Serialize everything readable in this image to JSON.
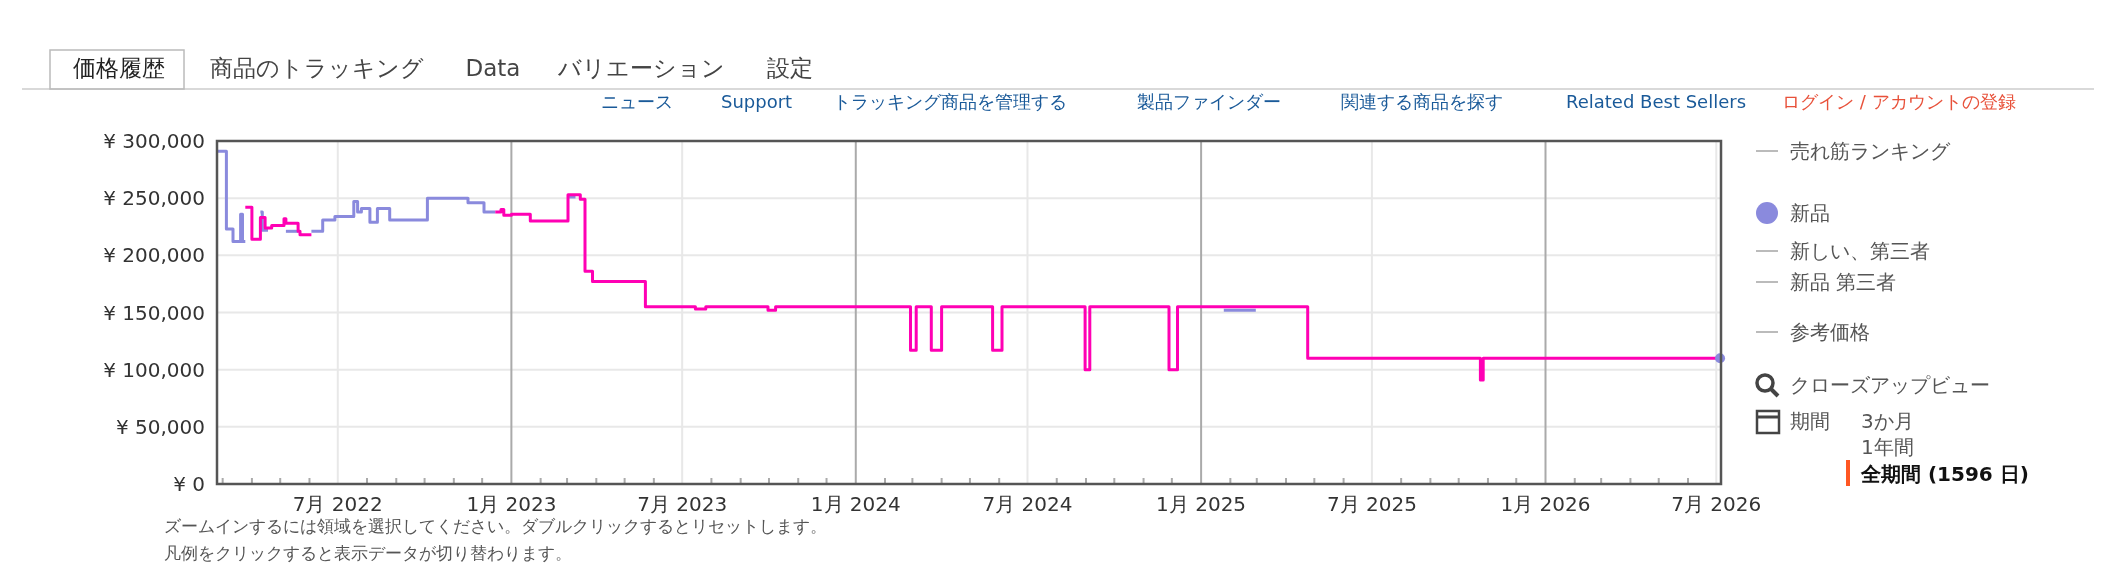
{
  "chart_data": {
    "type": "step",
    "ylim": [
      0,
      300000
    ],
    "xlim": [
      "2022-02-23",
      "2026-07-06"
    ],
    "yticks": [
      {
        "value": 0,
        "label": "¥ 0"
      },
      {
        "value": 50000,
        "label": "¥ 50,000"
      },
      {
        "value": 100000,
        "label": "¥ 100,000"
      },
      {
        "value": 150000,
        "label": "¥ 150,000"
      },
      {
        "value": 200000,
        "label": "¥ 200,000"
      },
      {
        "value": 250000,
        "label": "¥ 250,000"
      },
      {
        "value": 300000,
        "label": "¥ 300,000"
      }
    ],
    "xticks": [
      {
        "value": "2022-03",
        "label": null
      },
      {
        "value": "2022-04",
        "label": null
      },
      {
        "value": "2022-05",
        "label": null
      },
      {
        "value": "2022-06",
        "label": null
      },
      {
        "value": "2022-07",
        "label": "7月 2022"
      },
      {
        "value": "2022-08",
        "label": null
      },
      {
        "value": "2022-09",
        "label": null
      },
      {
        "value": "2022-10",
        "label": null
      },
      {
        "value": "2022-11",
        "label": null
      },
      {
        "value": "2022-12",
        "label": null
      },
      {
        "value": "2023-01",
        "label": "1月 2023"
      },
      {
        "value": "2023-02",
        "label": null
      },
      {
        "value": "2023-03",
        "label": null
      },
      {
        "value": "2023-04",
        "label": null
      },
      {
        "value": "2023-05",
        "label": null
      },
      {
        "value": "2023-06",
        "label": null
      },
      {
        "value": "2023-07",
        "label": "7月 2023"
      },
      {
        "value": "2023-08",
        "label": null
      },
      {
        "value": "2023-09",
        "label": null
      },
      {
        "value": "2023-10",
        "label": null
      },
      {
        "value": "2023-11",
        "label": null
      },
      {
        "value": "2023-12",
        "label": null
      },
      {
        "value": "2024-01",
        "label": "1月 2024"
      },
      {
        "value": "2024-02",
        "label": null
      },
      {
        "value": "2024-03",
        "label": null
      },
      {
        "value": "2024-04",
        "label": null
      },
      {
        "value": "2024-05",
        "label": null
      },
      {
        "value": "2024-06",
        "label": null
      },
      {
        "value": "2024-07",
        "label": "7月 2024"
      },
      {
        "value": "2024-08",
        "label": null
      },
      {
        "value": "2024-09",
        "label": null
      },
      {
        "value": "2024-10",
        "label": null
      },
      {
        "value": "2024-11",
        "label": null
      },
      {
        "value": "2024-12",
        "label": null
      },
      {
        "value": "2025-01",
        "label": "1月 2025"
      },
      {
        "value": "2025-02",
        "label": null
      },
      {
        "value": "2025-03",
        "label": null
      },
      {
        "value": "2025-04",
        "label": null
      },
      {
        "value": "2025-05",
        "label": null
      },
      {
        "value": "2025-06",
        "label": null
      },
      {
        "value": "2025-07",
        "label": "7月 2025"
      },
      {
        "value": "2025-08",
        "label": null
      },
      {
        "value": "2025-09",
        "label": null
      },
      {
        "value": "2025-10",
        "label": null
      },
      {
        "value": "2025-11",
        "label": null
      },
      {
        "value": "2025-12",
        "label": null
      },
      {
        "value": "2026-01",
        "label": "1月 2026"
      },
      {
        "value": "2026-02",
        "label": null
      },
      {
        "value": "2026-03",
        "label": null
      },
      {
        "value": "2026-04",
        "label": null
      },
      {
        "value": "2026-05",
        "label": null
      },
      {
        "value": "2026-06",
        "label": null
      },
      {
        "value": "2026-07",
        "label": "7月 2026"
      }
    ],
    "grid": true,
    "legend": "right",
    "series": [
      {
        "name": "新品",
        "color": "#8a8add",
        "x": [
          "2022-02-23",
          "2022-03-05",
          "2022-03-12",
          "2022-03-20",
          "2022-03-22",
          "2022-03-25"
        ],
        "values": [
          291000,
          223000,
          212000,
          236000,
          212000,
          212000
        ]
      },
      {
        "color": "#8a8add",
        "x": [
          "2022-04-10",
          "2022-04-12",
          "2022-04-18"
        ],
        "values": [
          238000,
          222000,
          222000
        ]
      },
      {
        "color": "#8a8add",
        "x": [
          "2022-05-07",
          "2022-05-20"
        ],
        "values": [
          221000,
          221000
        ]
      },
      {
        "color": "#8a8add",
        "x": [
          "2022-06-03",
          "2022-06-15",
          "2022-06-28",
          "2022-07-18",
          "2022-07-22",
          "2022-07-26",
          "2022-08-04",
          "2022-08-12",
          "2022-08-25",
          "2022-10-04",
          "2022-11-16",
          "2022-12-03",
          "2022-12-15"
        ],
        "values": [
          221000,
          231000,
          234000,
          247000,
          238000,
          241000,
          229000,
          241000,
          231000,
          250000,
          246000,
          238000,
          238000
        ]
      },
      {
        "color": "#8a8add",
        "x": [
          "2023-03-02",
          "2023-03-10"
        ],
        "values": [
          251000,
          251000
        ]
      },
      {
        "color": "#8a8add",
        "x": [
          "2025-01-25",
          "2025-02-28"
        ],
        "values": [
          152000,
          152000
        ]
      },
      {
        "color": "#ff00b4",
        "x": [
          "2022-03-25",
          "2022-04-01",
          "2022-04-10",
          "2022-04-15",
          "2022-04-22",
          "2022-05-05",
          "2022-05-07",
          "2022-05-20",
          "2022-05-22",
          "2022-06-03"
        ],
        "values": [
          242000,
          214000,
          233000,
          224000,
          226000,
          232000,
          228000,
          221000,
          218000,
          218000
        ]
      },
      {
        "color": "#ff00b4",
        "x": [
          "2022-12-15",
          "2022-12-21",
          "2022-12-24",
          "2023-01-01",
          "2023-01-21",
          "2023-03-02",
          "2023-03-15",
          "2023-03-20",
          "2023-03-28",
          "2023-05-23",
          "2023-07-15",
          "2023-07-26",
          "2023-09-30",
          "2023-10-08",
          "2024-02-28",
          "2024-03-05",
          "2024-03-21",
          "2024-04-01",
          "2024-05-25",
          "2024-06-04",
          "2024-08-31",
          "2024-09-05",
          "2024-11-28",
          "2024-12-07",
          "2025-04-24",
          "2025-10-24",
          "2025-10-27",
          "2026-07-05"
        ],
        "values": [
          238000,
          240000,
          235000,
          236000,
          230000,
          253000,
          249000,
          186000,
          177000,
          155000,
          153000,
          155000,
          152000,
          155000,
          117000,
          155000,
          117000,
          155000,
          117000,
          155000,
          100000,
          155000,
          100000,
          155000,
          110000,
          91000,
          110000,
          110000
        ]
      },
      {
        "type": "scatter",
        "color": "#8a8add",
        "x": [
          "2026-07-05"
        ],
        "values": [
          110000
        ],
        "marker": "circle"
      }
    ],
    "annotations": [
      "価格履歴",
      "商品のトラッキング",
      "Data",
      "バリエーション",
      "設定",
      "ニュース",
      "Support",
      "トラッキング商品を管理する",
      "製品ファインダー",
      "関連する商品を探す",
      "Related Best Sellers",
      "ログイン / アカウントの登録",
      "売れ筋ランキング",
      "新しい、第三者",
      "新品 第三者",
      "参考価格",
      "クローズアップビュー",
      "期間",
      "3か月",
      "1年間",
      "全期間 (1596 日)",
      "ズームインするには領域を選択してください。ダブルクリックするとリセットします。",
      "凡例をクリックすると表示データが切り替わります。"
    ]
  }
}
